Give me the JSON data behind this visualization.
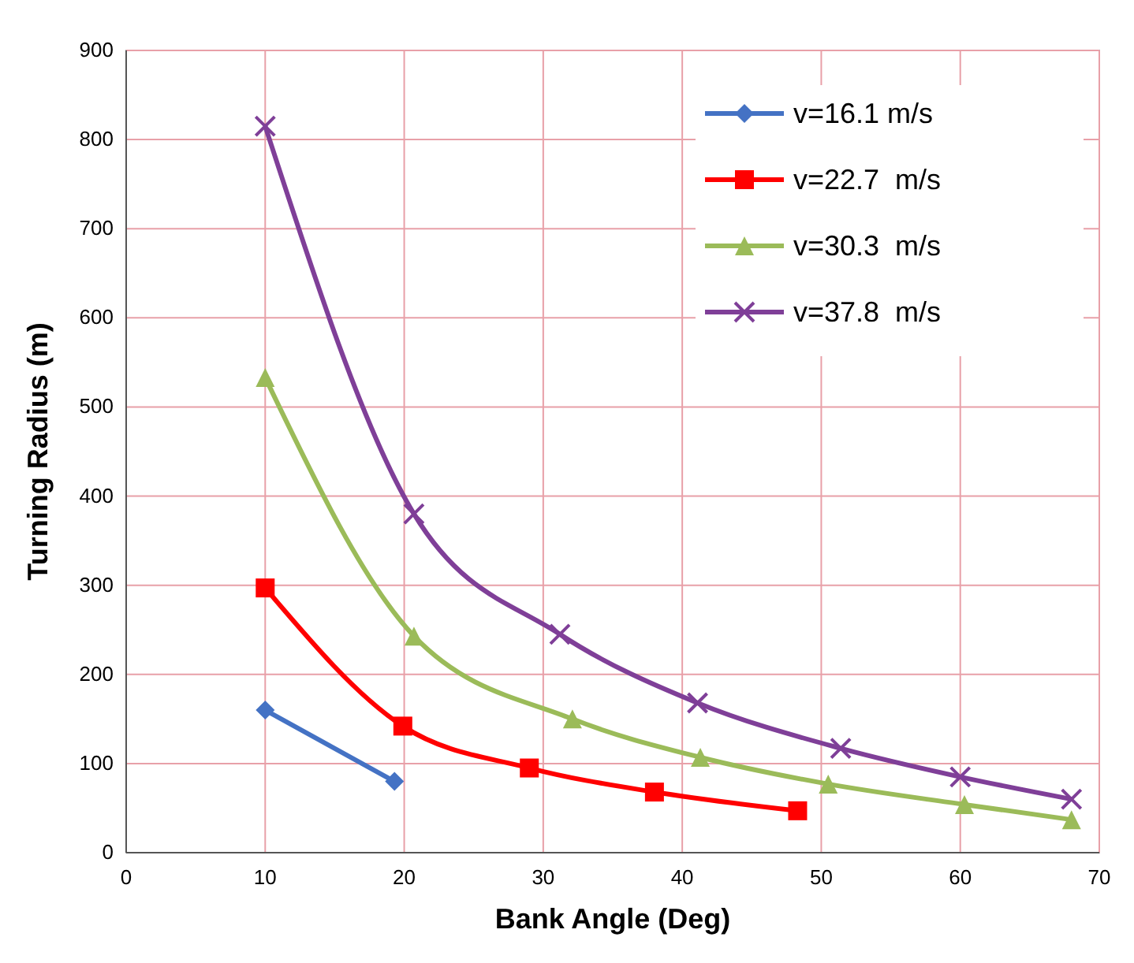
{
  "chart_data": {
    "type": "line",
    "xlabel": "Bank Angle (Deg)",
    "ylabel": "Turning Radius (m)",
    "xlim": [
      0,
      70
    ],
    "xticks": [
      0,
      10,
      20,
      30,
      40,
      50,
      60,
      70
    ],
    "ylim": [
      0,
      900
    ],
    "yticks": [
      0,
      100,
      200,
      300,
      400,
      500,
      600,
      700,
      800,
      900
    ],
    "grid": true,
    "legend": "top right",
    "series": [
      {
        "name": "v=16.1 m/s",
        "color": "#4472c4",
        "marker": "diamond",
        "x": [
          10,
          19.3
        ],
        "values": [
          160,
          80
        ]
      },
      {
        "name": "v=22.7  m/s",
        "color": "#ff0000",
        "marker": "square",
        "x": [
          10,
          19.9,
          29,
          38,
          48.3
        ],
        "values": [
          297,
          142,
          95,
          68,
          47
        ]
      },
      {
        "name": "v=30.3  m/s",
        "color": "#9bbb59",
        "marker": "triangle",
        "x": [
          10,
          20.7,
          32.1,
          41.3,
          50.5,
          60.3,
          68
        ],
        "values": [
          533,
          243,
          150,
          107,
          77,
          54,
          37
        ]
      },
      {
        "name": "v=37.8  m/s",
        "color": "#7f3f98",
        "marker": "cross",
        "x": [
          10,
          20.7,
          31.2,
          41.1,
          51.4,
          60,
          68
        ],
        "values": [
          815,
          380,
          245,
          168,
          117,
          85,
          60
        ]
      }
    ]
  }
}
